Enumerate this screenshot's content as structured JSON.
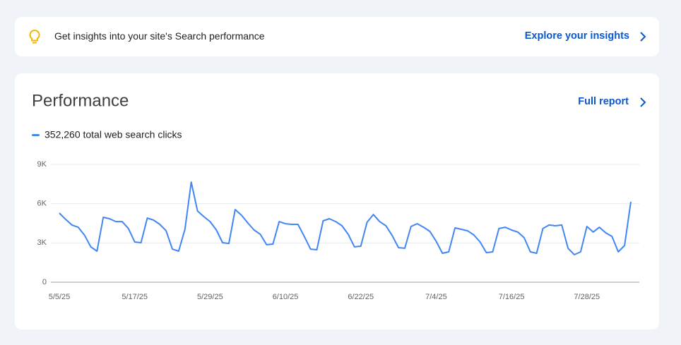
{
  "insight_banner": {
    "text": "Get insights into your site's Search performance",
    "link": "Explore your insights"
  },
  "performance_card": {
    "link": "Full report"
  },
  "chart_data": {
    "type": "line",
    "title": "Performance",
    "categories": [
      "5/5/25",
      null,
      null,
      null,
      null,
      null,
      null,
      null,
      null,
      null,
      null,
      null,
      "5/17/25",
      null,
      null,
      null,
      null,
      null,
      null,
      null,
      null,
      null,
      null,
      null,
      "5/29/25",
      null,
      null,
      null,
      null,
      null,
      null,
      null,
      null,
      null,
      null,
      null,
      "6/10/25",
      null,
      null,
      null,
      null,
      null,
      null,
      null,
      null,
      null,
      null,
      null,
      "6/22/25",
      null,
      null,
      null,
      null,
      null,
      null,
      null,
      null,
      null,
      null,
      null,
      "7/4/25",
      null,
      null,
      null,
      null,
      null,
      null,
      null,
      null,
      null,
      null,
      null,
      "7/16/25",
      null,
      null,
      null,
      null,
      null,
      null,
      null,
      null,
      null,
      null,
      null,
      "7/28/25",
      null,
      null,
      null,
      null,
      null,
      null,
      null
    ],
    "series": [
      {
        "name": "352,260 total web search clicks",
        "color": "#4285f4",
        "values": [
          5280,
          4800,
          4370,
          4200,
          3600,
          2700,
          2370,
          4960,
          4850,
          4630,
          4630,
          4100,
          3070,
          3020,
          4900,
          4740,
          4420,
          3930,
          2530,
          2370,
          4040,
          7650,
          5440,
          5010,
          4630,
          3990,
          3020,
          2960,
          5550,
          5120,
          4530,
          3990,
          3660,
          2860,
          2910,
          4630,
          4470,
          4420,
          4420,
          3500,
          2530,
          2480,
          4690,
          4850,
          4630,
          4310,
          3660,
          2700,
          2750,
          4580,
          5170,
          4630,
          4310,
          3560,
          2640,
          2590,
          4260,
          4470,
          4200,
          3880,
          3130,
          2210,
          2320,
          4150,
          4040,
          3930,
          3610,
          3070,
          2260,
          2320,
          4100,
          4200,
          3990,
          3830,
          3400,
          2320,
          2210,
          4100,
          4370,
          4310,
          4370,
          2590,
          2100,
          2320,
          4260,
          3830,
          4200,
          3770,
          3500,
          2320,
          2800,
          6150
        ]
      }
    ],
    "ylim": [
      0,
      9000
    ],
    "yticks": [
      0,
      {
        "value": 3000,
        "label": "3K"
      },
      {
        "value": 6000,
        "label": "6K"
      },
      {
        "value": 9000,
        "label": "9K"
      }
    ],
    "grid": true
  }
}
